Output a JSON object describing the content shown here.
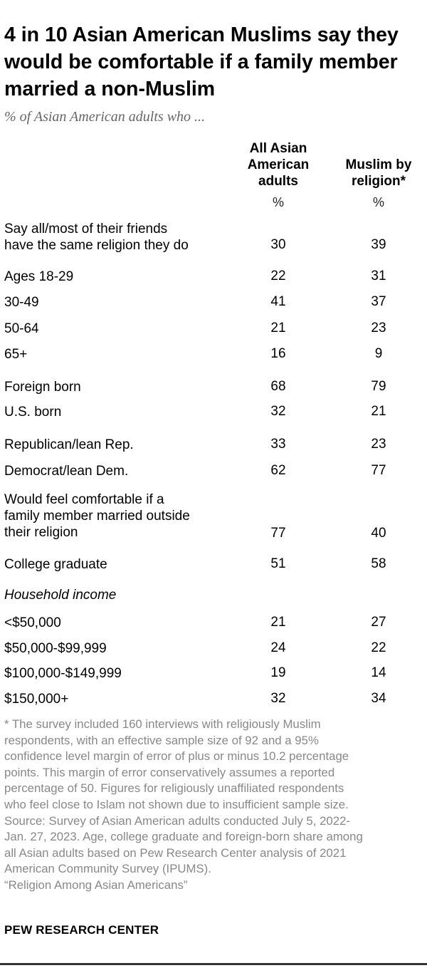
{
  "title": "4 in 10 Asian American Muslims say they would be comfortable if a family member married a non-Muslim",
  "subtitle": "% of Asian American adults who ...",
  "chart_data": {
    "type": "table",
    "title": "4 in 10 Asian American Muslims say they would be comfortable if a family member married a non-Muslim",
    "subtitle": "% of Asian American adults who ...",
    "columns": [
      {
        "label": "All Asian American adults",
        "unit": "%"
      },
      {
        "label": "Muslim by religion*",
        "unit": "%"
      }
    ],
    "rows": [
      {
        "label": "Say all/most of their friends have the same religion they do",
        "values": [
          "30",
          "39"
        ]
      },
      {
        "label": "Ages 18-29",
        "values": [
          "22",
          "31"
        ]
      },
      {
        "label": "30-49",
        "values": [
          "41",
          "37"
        ]
      },
      {
        "label": "50-64",
        "values": [
          "21",
          "23"
        ]
      },
      {
        "label": "65+",
        "values": [
          "16",
          "9"
        ]
      },
      {
        "label": "Foreign born",
        "values": [
          "68",
          "79"
        ]
      },
      {
        "label": "U.S. born",
        "values": [
          "32",
          "21"
        ]
      },
      {
        "label": "Republican/lean Rep.",
        "values": [
          "33",
          "23"
        ]
      },
      {
        "label": "Democrat/lean Dem.",
        "values": [
          "62",
          "77"
        ]
      },
      {
        "label": "Would feel comfortable if a family member married outside their religion",
        "values": [
          "77",
          "40"
        ]
      },
      {
        "label": "College graduate",
        "values": [
          "51",
          "58"
        ]
      },
      {
        "label": "Household income",
        "values": [
          "",
          ""
        ]
      },
      {
        "label": "<$50,000",
        "values": [
          "21",
          "27"
        ]
      },
      {
        "label": "$50,000-$99,999",
        "values": [
          "24",
          "22"
        ]
      },
      {
        "label": "$100,000-$149,999",
        "values": [
          "19",
          "14"
        ]
      },
      {
        "label": "$150,000+",
        "values": [
          "32",
          "34"
        ]
      }
    ]
  },
  "header": {
    "col1_line1": "All Asian",
    "col1_line2": "American",
    "col1_line3": "adults",
    "col2_line1": "Muslim by",
    "col2_line2": "religion*",
    "pct_symbol": "%"
  },
  "rows": {
    "r1": {
      "line1": "Say all/most of their friends",
      "line2": "have the same religion they do",
      "v1": "30",
      "v2": "39"
    },
    "r2": {
      "label": "Ages 18-29",
      "v1": "22",
      "v2": "31"
    },
    "r3": {
      "label": "30-49",
      "v1": "41",
      "v2": "37"
    },
    "r4": {
      "label": "50-64",
      "v1": "21",
      "v2": "23"
    },
    "r5": {
      "label": "65+",
      "v1": "16",
      "v2": "9"
    },
    "r6": {
      "label": "Foreign born",
      "v1": "68",
      "v2": "79"
    },
    "r7": {
      "label": "U.S. born",
      "v1": "32",
      "v2": "21"
    },
    "r8": {
      "label": "Republican/lean Rep.",
      "v1": "33",
      "v2": "23"
    },
    "r9": {
      "label": "Democrat/lean Dem.",
      "v1": "62",
      "v2": "77"
    },
    "r10": {
      "line1": "Would feel comfortable if a",
      "line2": "family member married outside",
      "line3": "their religion",
      "v1": "77",
      "v2": "40"
    },
    "r11": {
      "label": "College graduate",
      "v1": "51",
      "v2": "58"
    },
    "r12": {
      "label": "Household income"
    },
    "r13": {
      "label": "<$50,000",
      "v1": "21",
      "v2": "27"
    },
    "r14": {
      "label": "$50,000-$99,999",
      "v1": "24",
      "v2": "22"
    },
    "r15": {
      "label": "$100,000-$149,999",
      "v1": "19",
      "v2": "14"
    },
    "r16": {
      "label": "$150,000+",
      "v1": "32",
      "v2": "34"
    }
  },
  "note": {
    "line1": "* The survey included 160 interviews with religiously Muslim",
    "line2": "respondents, with an effective sample size of 92 and a 95%",
    "line3": "confidence level margin of error of plus or minus 10.2 percentage",
    "line4": "points. This margin of error conservatively assumes a reported",
    "line5": "percentage of 50. Figures for religiously unaffiliated respondents",
    "line6": "who feel close to Islam not shown due to insufficient sample size.",
    "line7": "Source: Survey of Asian American adults conducted July 5, 2022-",
    "line8": "Jan. 27, 2023. Age, college graduate and foreign-born share among",
    "line9": "all Asian adults based on Pew Research Center analysis of 2021",
    "line10": "American Community Survey (IPUMS).",
    "line11": "“Religion Among Asian Americans”"
  },
  "source_logo": "PEW RESEARCH CENTER"
}
